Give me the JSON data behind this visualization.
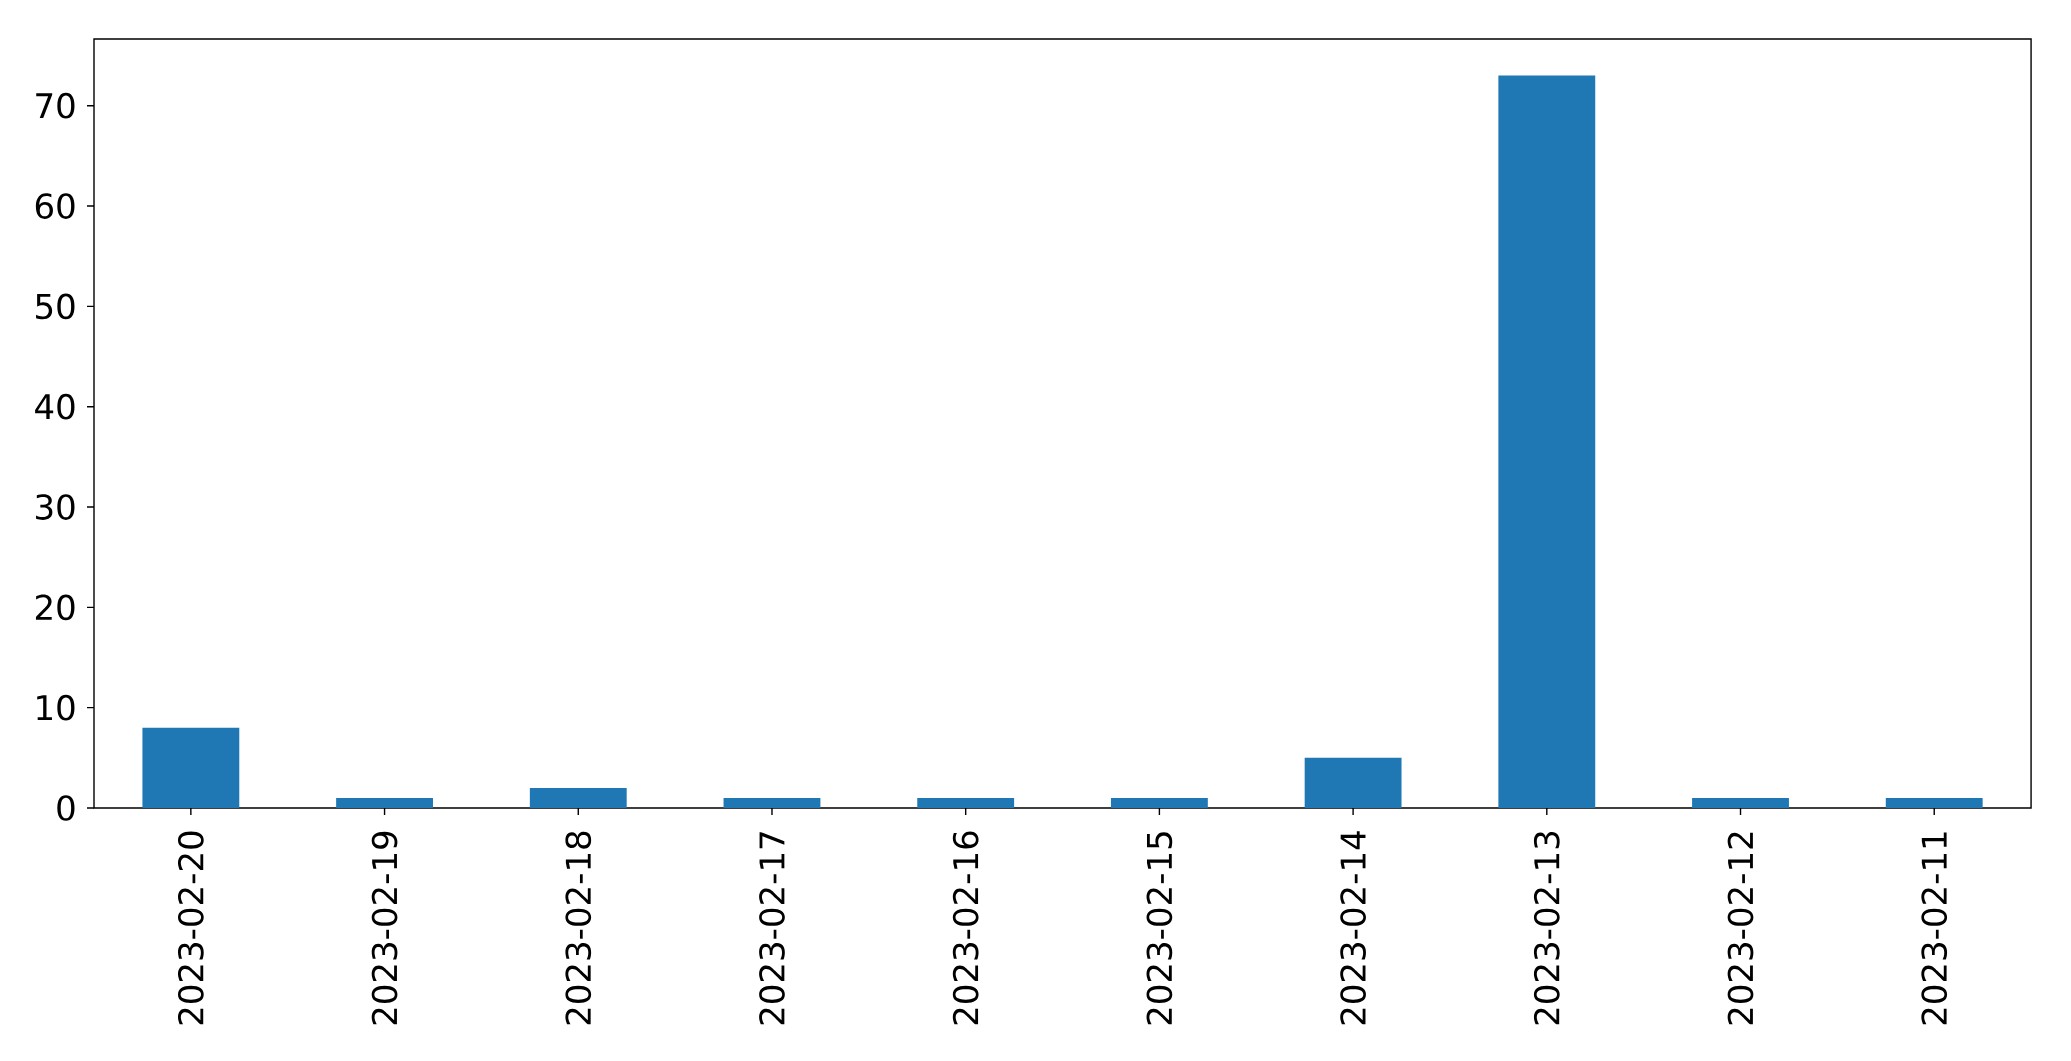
{
  "chart_data": {
    "type": "bar",
    "categories": [
      "2023-02-20",
      "2023-02-19",
      "2023-02-18",
      "2023-02-17",
      "2023-02-16",
      "2023-02-15",
      "2023-02-14",
      "2023-02-13",
      "2023-02-12",
      "2023-02-11"
    ],
    "values": [
      8,
      1,
      2,
      1,
      1,
      1,
      5,
      73,
      1,
      1
    ],
    "color": "#1f77b4",
    "ylim": [
      0,
      76.65
    ],
    "yticks": [
      0,
      10,
      20,
      30,
      40,
      50,
      60,
      70
    ]
  }
}
